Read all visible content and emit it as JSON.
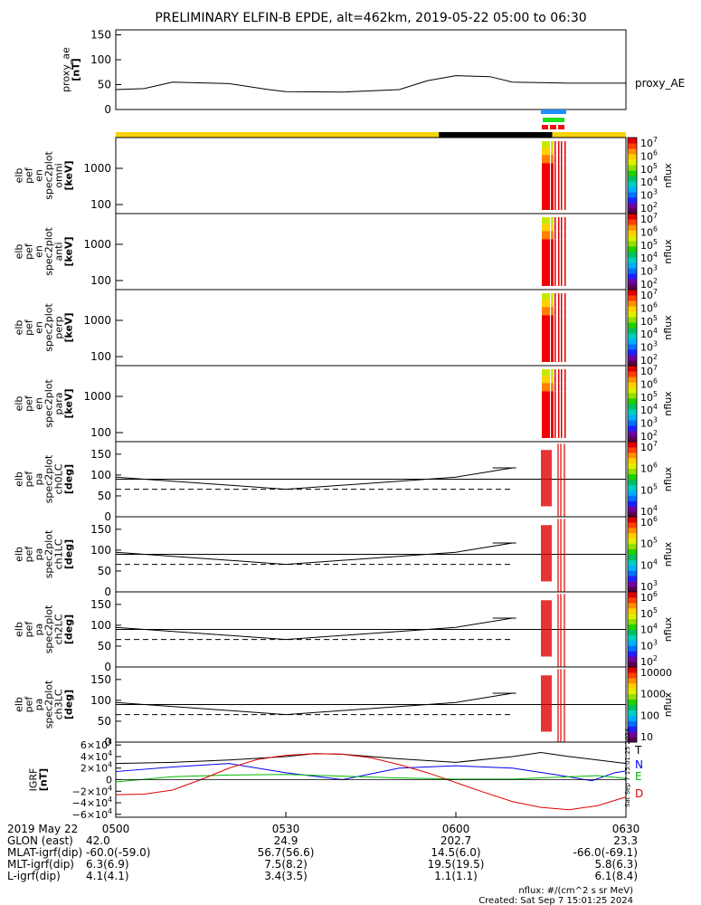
{
  "title": "PRELIMINARY ELFIN-B EPDE, alt=462km, 2019-05-22 05:00 to 06:30",
  "colors": {
    "sunlight": "#f5d20a",
    "shadow": "#000000",
    "bar_blue": "#1e90ff",
    "bar_green": "#22dd22",
    "bar_red": "#ee1111",
    "grf_T": "#000000",
    "grf_N": "#0000ee",
    "grf_E": "#00bb00",
    "grf_D": "#dd0000"
  },
  "colorbar_labels": {
    "c1": [
      "10^7",
      "10^6",
      "10^5",
      "10^4",
      "10^3",
      "10^2"
    ],
    "c5": [
      "10^7",
      "10^6",
      "10^5",
      "10^4"
    ],
    "c6": [
      "10^6",
      "10^5",
      "10^4",
      "10^3"
    ],
    "c7": [
      "10^6",
      "10^5",
      "10^4",
      "10^3",
      "10^2"
    ],
    "c8": [
      "10000",
      "1000",
      "100",
      "10"
    ],
    "unit": "nflux"
  },
  "chart_data": [
    {
      "type": "line",
      "id": "proxy_ae",
      "ylabel": "proxy_ae\n[nT]",
      "legend": "proxy_AE",
      "ylim": [
        0,
        160
      ],
      "yticks": [
        "150",
        "100",
        "50",
        "0"
      ],
      "x_minutes": [
        0,
        5,
        10,
        20,
        27,
        30,
        40,
        50,
        55,
        60,
        66,
        70,
        80,
        90
      ],
      "values": [
        40,
        42,
        55,
        52,
        40,
        36,
        35,
        40,
        58,
        68,
        66,
        55,
        53,
        53
      ]
    },
    {
      "type": "heatmap",
      "id": "omni",
      "ylabel": "elb\npef\nen\nspec2plot\nomni\n[keV]",
      "yticks": [
        "1000",
        "100"
      ],
      "colorbar": "nflux"
    },
    {
      "type": "heatmap",
      "id": "anti",
      "ylabel": "elb\npef\nen\nspec2plot\nanti\n[keV]",
      "yticks": [
        "1000",
        "100"
      ],
      "colorbar": "nflux"
    },
    {
      "type": "heatmap",
      "id": "perp",
      "ylabel": "elb\npef\nen\nspec2plot\nperp\n[keV]",
      "yticks": [
        "1000",
        "100"
      ],
      "colorbar": "nflux"
    },
    {
      "type": "heatmap",
      "id": "para",
      "ylabel": "elb\npef\nen\nspec2plot\npara\n[keV]",
      "yticks": [
        "1000",
        "100"
      ],
      "colorbar": "nflux"
    },
    {
      "type": "line",
      "id": "ch0LC",
      "ylabel": "elb\npef\npa\nspec2plot\nch0LC\n[deg]",
      "yticks": [
        "150",
        "100",
        "50",
        "0"
      ],
      "ylim": [
        0,
        180
      ],
      "losscone_x": [
        0,
        30,
        60,
        70
      ],
      "losscone_y": [
        95,
        66,
        95,
        117
      ],
      "hline": 90,
      "dashed": 66,
      "colorbar": "nflux"
    },
    {
      "type": "line",
      "id": "ch1LC",
      "ylabel": "elb\npef\npa\nspec2plot\nch1LC\n[deg]",
      "yticks": [
        "150",
        "100",
        "50",
        "0"
      ],
      "ylim": [
        0,
        180
      ],
      "losscone_x": [
        0,
        30,
        60,
        70
      ],
      "losscone_y": [
        95,
        66,
        95,
        117
      ],
      "hline": 90,
      "dashed": 66,
      "colorbar": "nflux"
    },
    {
      "type": "line",
      "id": "ch2LC",
      "ylabel": "elb\npef\npa\nspec2plot\nch2LC\n[deg]",
      "yticks": [
        "150",
        "100",
        "50",
        "0"
      ],
      "ylim": [
        0,
        180
      ],
      "losscone_x": [
        0,
        30,
        60,
        70
      ],
      "losscone_y": [
        95,
        66,
        95,
        117
      ],
      "hline": 90,
      "dashed": 66,
      "colorbar": "nflux"
    },
    {
      "type": "line",
      "id": "ch3LC",
      "ylabel": "elb\npef\npa\nspec2plot\nch3LC\n[deg]",
      "yticks": [
        "150",
        "100",
        "50",
        "0"
      ],
      "ylim": [
        0,
        180
      ],
      "losscone_x": [
        0,
        30,
        60,
        70
      ],
      "losscone_y": [
        95,
        66,
        95,
        117
      ],
      "hline": 90,
      "dashed": 66,
      "colorbar": "nflux"
    },
    {
      "type": "line",
      "id": "igrf",
      "ylabel": "IGRF\n[nT]",
      "ylim": [
        -65000,
        65000
      ],
      "yticks": [
        "6×10^4",
        "4×10^4",
        "2×10^4",
        "0",
        "−2×10^4",
        "−4×10^4",
        "−6×10^4"
      ],
      "series": [
        {
          "name": "T",
          "x": [
            0,
            10,
            20,
            30,
            35,
            40,
            50,
            60,
            70,
            75,
            80,
            90
          ],
          "values": [
            28000,
            30000,
            34000,
            40000,
            45000,
            44000,
            36000,
            30000,
            40000,
            47000,
            40000,
            28000
          ]
        },
        {
          "name": "N",
          "x": [
            0,
            10,
            20,
            30,
            40,
            45,
            50,
            60,
            70,
            78,
            84,
            88,
            90
          ],
          "values": [
            14000,
            22000,
            28000,
            12000,
            0,
            10000,
            20000,
            24000,
            20000,
            8000,
            -2000,
            12000,
            15000
          ]
        },
        {
          "name": "E",
          "x": [
            0,
            10,
            20,
            30,
            40,
            50,
            60,
            70,
            80,
            85,
            90
          ],
          "values": [
            -4000,
            5000,
            8000,
            9000,
            6000,
            3000,
            1000,
            1000,
            5000,
            7000,
            2000
          ]
        },
        {
          "name": "D",
          "x": [
            0,
            5,
            10,
            15,
            20,
            25,
            30,
            35,
            40,
            45,
            50,
            55,
            60,
            65,
            70,
            75,
            80,
            85,
            90
          ],
          "values": [
            -26000,
            -25000,
            -18000,
            0,
            20000,
            35000,
            42000,
            45000,
            44000,
            38000,
            26000,
            12000,
            -5000,
            -22000,
            -38000,
            -48000,
            -52000,
            -45000,
            -30000
          ]
        }
      ]
    }
  ],
  "xaxis": {
    "ticks": [
      "0500",
      "0530",
      "0600",
      "0630"
    ],
    "date": "2019 May 22",
    "rows": [
      {
        "label": "GLON (east)",
        "values": [
          "42.0",
          "24.9",
          "202.7",
          "23.3"
        ]
      },
      {
        "label": "MLAT-igrf(dip)",
        "values": [
          "-60.0(-59.0)",
          "56.7(56.6)",
          "14.5(6.0)",
          "-66.0(-69.1)"
        ]
      },
      {
        "label": "MLT-igrf(dip)",
        "values": [
          "6.3(6.9)",
          "7.5(8.2)",
          "19.5(19.5)",
          "5.8(6.3)"
        ]
      },
      {
        "label": "L-igrf(dip)",
        "values": [
          "4.1(4.1)",
          "3.4(3.5)",
          "1.1(1.1)",
          "6.1(8.4)"
        ]
      }
    ]
  },
  "footer": {
    "units": "nflux: #/(cm^2 s sr MeV)",
    "created": "Created: Sat Sep  7 15:01:25 2024",
    "side_stamp": "Sat Sep  7 15:01:25 2024"
  }
}
